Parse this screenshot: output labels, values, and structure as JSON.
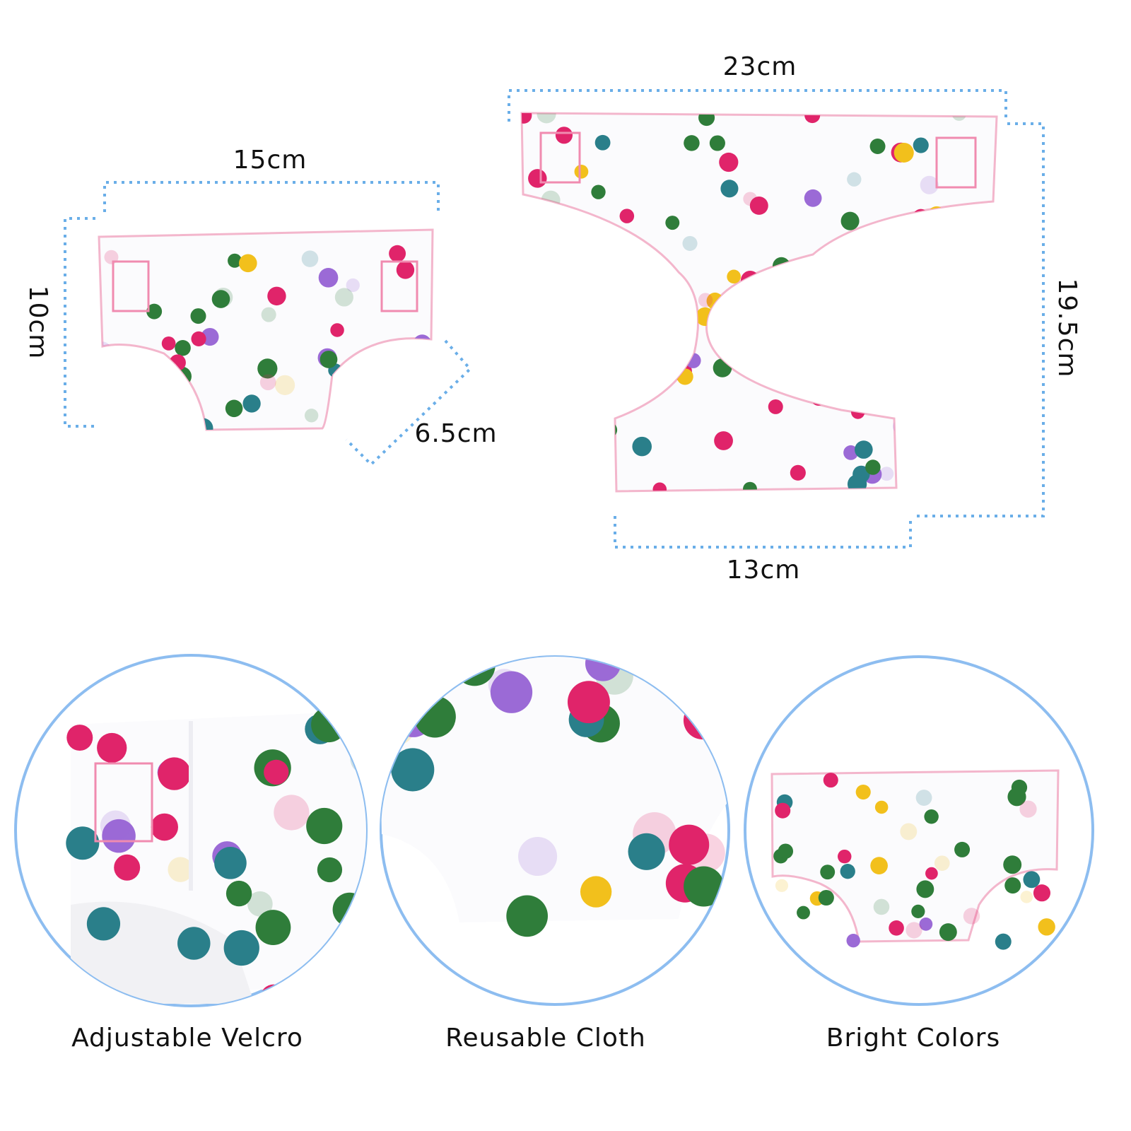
{
  "small_diaper": {
    "width": "15cm",
    "height": "10cm",
    "depth": "6.5cm"
  },
  "large_diaper": {
    "width": "23cm",
    "height": "19.5cm",
    "bottom_width": "13cm"
  },
  "features": [
    "Adjustable Velcro",
    "Reusable Cloth",
    "Bright Colors"
  ]
}
